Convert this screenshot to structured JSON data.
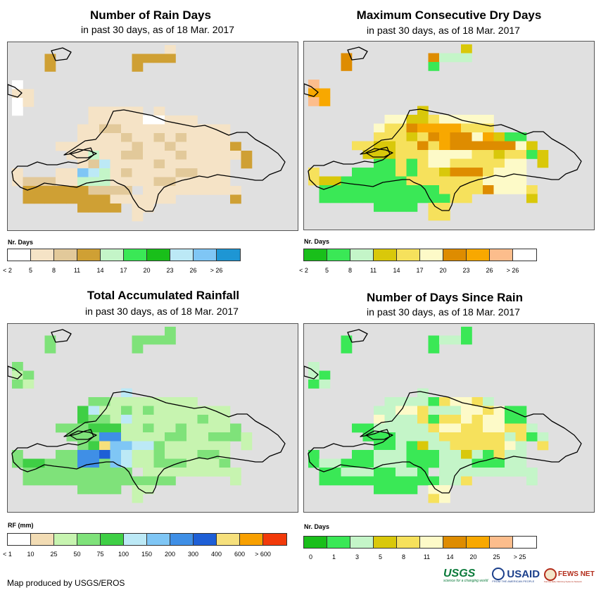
{
  "panels": [
    {
      "id": "rain_days",
      "title": "Number of Rain Days",
      "subtitle": "in past 30 days, as of 18 Mar. 2017",
      "legend_title": "Nr. Days",
      "legend_labels": [
        "< 2",
        "5",
        "8",
        "11",
        "14",
        "17",
        "20",
        "23",
        "26",
        "> 26"
      ],
      "legend_colors": [
        "#ffffff",
        "#f5e3c6",
        "#e2c99a",
        "#cfa034",
        "#c4f5c8",
        "#3ae856",
        "#19bf1a",
        "#bce9f6",
        "#7fc6f5",
        "#1e96d4"
      ]
    },
    {
      "id": "max_dry_days",
      "title": "Maximum Consecutive Dry Days",
      "subtitle": "in past 30 days, as of 18 Mar. 2017",
      "legend_title": "Nr. Days",
      "legend_labels": [
        "< 2",
        "5",
        "8",
        "11",
        "14",
        "17",
        "20",
        "23",
        "26",
        "> 26"
      ],
      "legend_colors": [
        "#19bf1a",
        "#3ae856",
        "#c4f5c8",
        "#d9c80a",
        "#f6e15c",
        "#fdfac8",
        "#de8c00",
        "#f8a800",
        "#fcbd8c",
        "#ffffff"
      ]
    },
    {
      "id": "total_rainfall",
      "title": "Total Accumulated Rainfall",
      "subtitle": "in past 30 days, as of 18 Mar. 2017",
      "legend_title": "RF (mm)",
      "legend_labels": [
        "< 1",
        "10",
        "25",
        "50",
        "75",
        "100",
        "150",
        "200",
        "300",
        "400",
        "600",
        "> 600"
      ],
      "legend_colors": [
        "#ffffff",
        "#f2dcb4",
        "#c7f4b0",
        "#7fe27a",
        "#3fcf45",
        "#bce9f6",
        "#7fc6f5",
        "#3f8fe6",
        "#1e5fd6",
        "#f6e07c",
        "#f8a000",
        "#f23a0a"
      ]
    },
    {
      "id": "days_since_rain",
      "title": "Number of Days Since Rain",
      "subtitle": "in past 30 days, as of 18 Mar. 2017",
      "legend_title": "Nr. Days",
      "legend_labels": [
        "0",
        "1",
        "3",
        "5",
        "8",
        "11",
        "14",
        "20",
        "25",
        "> 25"
      ],
      "legend_colors": [
        "#19bf1a",
        "#3ae856",
        "#c4f5c8",
        "#d9c80a",
        "#f6e15c",
        "#fdfac8",
        "#de8c00",
        "#f8a800",
        "#fcbd8c",
        "#ffffff"
      ]
    }
  ],
  "grids": {
    "rain_days": [
      "..............1.......",
      "...3.......3333.......",
      "...3.......3..........",
      "......................",
      "0......................",
      "11....................",
      "01....................",
      "0......11111.1........",
      ".......1111100111.....",
      "......11221111111111..",
      "......11112112121111..",
      "....11111112112111113.",
      ".....11411221112111113",
      "......12711112111111.3",
      "1...1187412111122111..",
      "12221144411112211111..",
      ".3333332222.111111111.",
      ".33333333111111.....3.",
      "......3333.11.........",
      "...........1.........."
    ],
    "max_dry_days": [
      "..............3.......",
      "...6.......6222.......",
      "...6.......1..........",
      "......................",
      "8......................",
      "77....................",
      "87....................",
      "..........3...........",
      ".......5533455555.....",
      "......54467777444.....",
      "......44434676657311..",
      "....44334464766666653.",
      ".....33344455554434413",
      "......11414554444455.3",
      "4...1111414436664555..",
      "43311111144444445555..",
      ".11111111111444465554.",
      ".11111111111144.....3.",
      "......1111.44.........",
      "...........44........."
    ],
    "total_rainfall": [
      "..............3.......",
      "...3.......3333.......",
      "...3.......3..........",
      "......................",
      "3......................",
      "23....................",
      "32....................",
      "..........5...........",
      ".......3322222222.....",
      "......45223232222222..",
      "......43325222222322..",
      "....33344422322322223.",
      ".....33377222233223332",
      "......34966553222222.2",
      "3...3377865223222332..",
      "34433377365223332223..",
      ".3333333333.222222222.",
      ".33333333333333.....2.",
      "......3333.22.........",
      "...........2.........."
    ],
    "days_since_rain": [
      "..............1.......",
      "...1.......1221.......",
      "...1.......1..........",
      "......................",
      "2......................",
      "21....................",
      "12....................",
      "..........2...........",
      ".......2222145542.....",
      "......22554222554511..",
      "......52224144545511..",
      "....11222224554455442.",
      ".....11122224444442412",
      "......11213224444452.4",
      "1...1122211122321422..",
      "12211122211122211122..",
      ".1122211221.222222222.",
      ".11111111111224.....2.",
      "......1111.55.........",
      "...........45........."
    ]
  },
  "credit": "Map produced by USGS/EROS",
  "logos": {
    "usgs": "USGS",
    "usgs_tagline": "science for a changing world",
    "usaid": "USAID",
    "usaid_tagline": "FROM THE AMERICAN PEOPLE",
    "fewsnet": "FEWS NET",
    "fewsnet_tagline": "Famine Early Warning Systems Network"
  }
}
